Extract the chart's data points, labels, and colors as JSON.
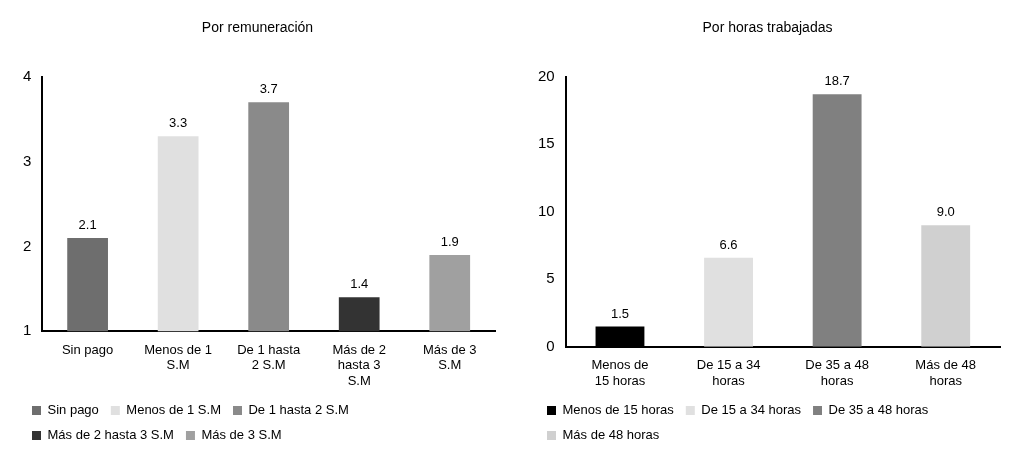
{
  "chart_data": [
    {
      "type": "bar",
      "title": "Por remuneración",
      "categories": [
        "Sin pago",
        "Menos de 1 S.M",
        "De 1 hasta 2 S.M",
        "Más de 2 hasta 3 S.M",
        "Más de 3 S.M"
      ],
      "ylim": [
        1,
        4
      ],
      "yticks": [
        1,
        2,
        3,
        4
      ],
      "grid": false,
      "legend": "bottom",
      "data_labels": true,
      "series": [
        {
          "name": "Sin pago",
          "color": "#6e6e6e",
          "values": [
            2.1,
            null,
            null,
            null,
            null
          ]
        },
        {
          "name": "Menos de 1 S.M",
          "color": "#e0e0e0",
          "values": [
            null,
            3.3,
            null,
            null,
            null
          ]
        },
        {
          "name": "De 1 hasta 2 S.M",
          "color": "#8a8a8a",
          "values": [
            null,
            null,
            3.7,
            null,
            null
          ]
        },
        {
          "name": "Más de 2 hasta 3 S.M",
          "color": "#333333",
          "values": [
            null,
            null,
            null,
            1.4,
            null
          ]
        },
        {
          "name": "Más de 3 S.M",
          "color": "#a0a0a0",
          "values": [
            null,
            null,
            null,
            null,
            1.9
          ]
        }
      ]
    },
    {
      "type": "bar",
      "title": "Por horas trabajadas",
      "categories": [
        "Menos de 15 horas",
        "De 15 a 34 horas",
        "De 35 a 48 horas",
        "Más de 48 horas"
      ],
      "ylim": [
        0,
        20
      ],
      "yticks": [
        0,
        5,
        10,
        15,
        20
      ],
      "grid": false,
      "legend": "bottom",
      "series": [
        {
          "name": "Menos de 15 horas",
          "color": "#000000",
          "values": [
            1.5,
            null,
            null,
            null
          ],
          "value_labels": [
            "1.5",
            null,
            null,
            null
          ]
        },
        {
          "name": "De 15 a 34 horas",
          "color": "#e0e0e0",
          "values": [
            null,
            6.6,
            null,
            null
          ],
          "value_labels": [
            null,
            "6.6",
            null,
            null
          ]
        },
        {
          "name": "De 35 a 48 horas",
          "color": "#808080",
          "values": [
            null,
            null,
            18.7,
            null
          ],
          "value_labels": [
            null,
            null,
            "18.7",
            null
          ]
        },
        {
          "name": "Más de 48 horas",
          "color": "#d0d0d0",
          "values": [
            null,
            null,
            null,
            9.0
          ],
          "value_labels": [
            null,
            null,
            null,
            "9.0"
          ]
        }
      ]
    }
  ]
}
